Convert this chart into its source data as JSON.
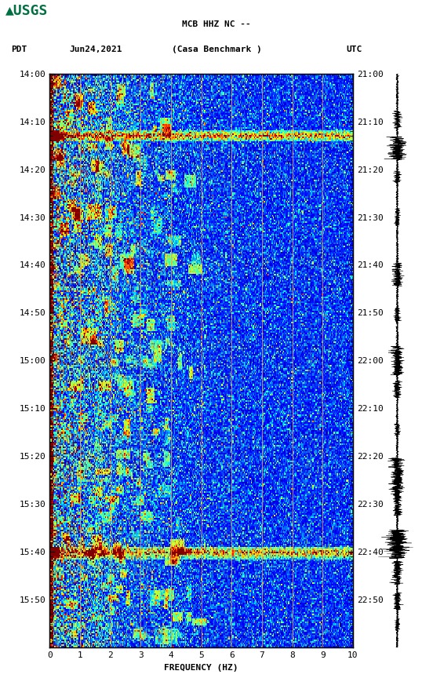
{
  "title_line1": "MCB HHZ NC --",
  "title_line2": "(Casa Benchmark )",
  "left_label": "PDT",
  "date_label": "Jun24,2021",
  "right_label": "UTC",
  "ylabel_left": [
    "14:00",
    "14:10",
    "14:20",
    "14:30",
    "14:40",
    "14:50",
    "15:00",
    "15:10",
    "15:20",
    "15:30",
    "15:40",
    "15:50"
  ],
  "ylabel_right": [
    "21:00",
    "21:10",
    "21:20",
    "21:30",
    "21:40",
    "21:50",
    "22:00",
    "22:10",
    "22:20",
    "22:30",
    "22:40",
    "22:50"
  ],
  "xlabel": "FREQUENCY (HZ)",
  "xticks": [
    0,
    1,
    2,
    3,
    4,
    5,
    6,
    7,
    8,
    9,
    10
  ],
  "xmin": 0,
  "xmax": 10,
  "background_color": "#ffffff",
  "spectrogram_cmap": "jet",
  "vertical_lines_color": "#FFA040",
  "vertical_lines_freq": [
    1.0,
    2.0,
    3.0,
    4.0,
    5.0,
    6.0,
    7.0,
    8.0,
    9.0
  ],
  "usgs_logo_color": "#006f41",
  "figure_width": 5.52,
  "figure_height": 8.92
}
